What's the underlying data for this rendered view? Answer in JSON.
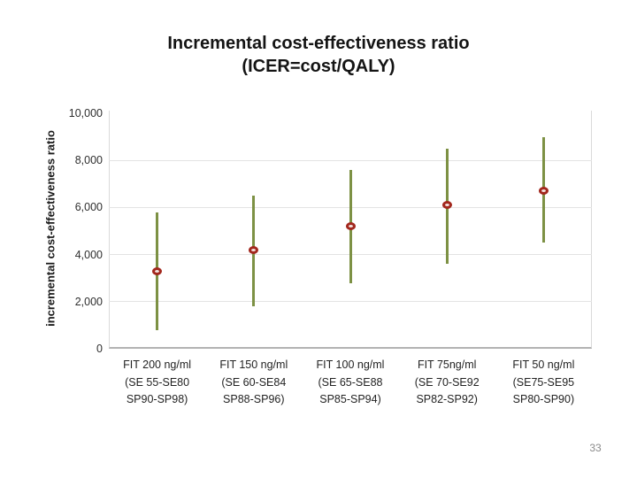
{
  "slide": {
    "title_line1": "Incremental cost-effectiveness ratio",
    "title_line2": "(ICER=cost/QALY)",
    "page_number": "33"
  },
  "chart_data": {
    "type": "scatter",
    "subtype": "points-with-error-bars",
    "title": "Incremental cost-effectiveness ratio (ICER=cost/QALY)",
    "xlabel": "",
    "ylabel": "incremental cost-effectiveness ratio",
    "ylim": [
      0,
      10000
    ],
    "ytick_values": [
      0,
      2000,
      4000,
      6000,
      8000,
      10000
    ],
    "ytick_labels": [
      "0",
      "2,000",
      "4,000",
      "6,000",
      "8,000",
      "10,000"
    ],
    "grid": true,
    "legend": false,
    "marker_color": "#a3281e",
    "errorbar_color": "#7d9144",
    "categories": [
      "FIT 200 ng/ml (SE 55-SE80 SP90-SP98)",
      "FIT 150 ng/ml (SE 60-SE84 SP88-SP96)",
      "FIT 100 ng/ml (SE 65-SE88 SP85-SP94)",
      "FIT 75ng/ml (SE 70-SE92 SP82-SP92)",
      "FIT 50 ng/ml (SE75-SE95 SP80-SP90)"
    ],
    "category_label_lines": [
      [
        "FIT 200 ng/ml",
        "(SE 55-SE80",
        "SP90-SP98)"
      ],
      [
        "FIT 150 ng/ml",
        "(SE 60-SE84",
        "SP88-SP96)"
      ],
      [
        "FIT 100 ng/ml",
        "(SE 65-SE88",
        "SP85-SP94)"
      ],
      [
        "FIT 75ng/ml",
        "(SE 70-SE92",
        "SP82-SP92)"
      ],
      [
        "FIT 50 ng/ml",
        "(SE75-SE95",
        "SP80-SP90)"
      ]
    ],
    "series": [
      {
        "name": "ICER",
        "values": [
          3300,
          4200,
          5200,
          6100,
          6700
        ],
        "error_low": [
          800,
          1800,
          2800,
          3600,
          4500
        ],
        "error_high": [
          5800,
          6500,
          7600,
          8500,
          9000
        ]
      }
    ]
  }
}
